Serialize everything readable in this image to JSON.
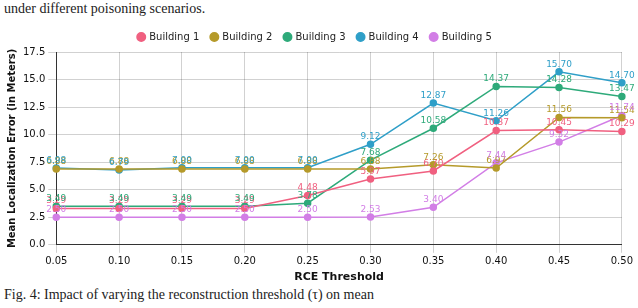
{
  "chart_data": {
    "type": "line",
    "annotations": [
      "under different poisoning scenarios.",
      "Fig. 4: Impact of varying the reconstruction threshold (τ) on mean"
    ],
    "x_label": "RCE Threshold",
    "y_label": "Mean Localization Error (in Meters)",
    "categories": [
      "0.05",
      "0.10",
      "0.15",
      "0.20",
      "0.25",
      "0.30",
      "0.35",
      "0.40",
      "0.45",
      "0.50"
    ],
    "series": [
      {
        "name": "Building 1",
        "color": "#f06080",
        "marker": "circle",
        "values": [
          3.29,
          3.29,
          3.29,
          3.29,
          4.48,
          5.97,
          6.7,
          10.37,
          10.45,
          10.29
        ],
        "value_labels": [
          "3.29",
          "3.29",
          "3.29",
          "3.29",
          "4.48",
          "5.97",
          "6.70",
          "10.37",
          "10.45",
          "10.29"
        ]
      },
      {
        "name": "Building 2",
        "color": "#b59a2a",
        "marker": "circle",
        "values": [
          6.88,
          6.88,
          6.88,
          6.88,
          6.88,
          6.88,
          7.26,
          6.97,
          11.56,
          11.54
        ],
        "value_labels": [
          "6.88",
          "6.88",
          "6.88",
          "6.88",
          "6.88",
          "6.88",
          "7.26",
          "6.97",
          "11.56",
          "11.54"
        ]
      },
      {
        "name": "Building 3",
        "color": "#2eaa7a",
        "marker": "circle",
        "values": [
          3.49,
          3.49,
          3.49,
          3.49,
          3.78,
          7.68,
          10.58,
          14.37,
          14.28,
          13.47
        ],
        "value_labels": [
          "3.49",
          "3.49",
          "3.49",
          "3.49",
          "3.78",
          "7.68",
          "10.58",
          "14.37",
          "14.28",
          "13.47"
        ]
      },
      {
        "name": "Building 4",
        "color": "#2f9fc8",
        "marker": "circle",
        "values": [
          6.98,
          6.79,
          7.0,
          7.0,
          7.0,
          9.12,
          12.87,
          11.26,
          15.7,
          14.7
        ],
        "value_labels": [
          "6.98",
          "6.79",
          "7.00",
          "7.00",
          "7.00",
          "9.12",
          "12.87",
          "11.26",
          "15.70",
          "14.70"
        ]
      },
      {
        "name": "Building 5",
        "color": "#d27ee6",
        "marker": "circle",
        "values": [
          2.5,
          2.5,
          2.5,
          2.5,
          2.5,
          2.53,
          3.4,
          7.44,
          9.32,
          11.74
        ],
        "value_labels": [
          "2.50",
          "2.50",
          "2.50",
          "2.50",
          "2.50",
          "2.53",
          "3.40",
          "7.44",
          "9.32",
          "11.74"
        ]
      }
    ],
    "ylim": [
      0,
      17.5
    ],
    "yticks": [
      {
        "value": 0,
        "label": "0.0"
      },
      {
        "value": 2.5,
        "label": "2.5"
      },
      {
        "value": 5,
        "label": "5.0"
      },
      {
        "value": 7.5,
        "label": "7.5"
      },
      {
        "value": 10,
        "label": "10.0"
      },
      {
        "value": 12.5,
        "label": "12.5"
      },
      {
        "value": 15,
        "label": "15.0"
      },
      {
        "value": 17.5,
        "label": "17.5"
      }
    ],
    "grid": true,
    "legend": "top",
    "data_labels": true
  }
}
